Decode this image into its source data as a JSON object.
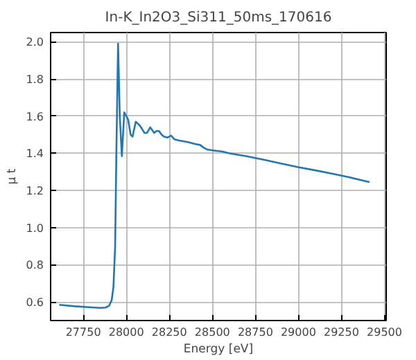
{
  "chart_data": {
    "type": "line",
    "title": "In-K_In2O3_Si311_50ms_170616",
    "xlabel": "Energy [eV]",
    "ylabel": "μ t",
    "xlim": [
      27560,
      29510
    ],
    "ylim": [
      0.5,
      2.05
    ],
    "xticks": [
      27750,
      28000,
      28250,
      28500,
      28750,
      29000,
      29250,
      29500
    ],
    "yticks": [
      0.6,
      0.8,
      {
        "value": 1,
        "label": "1.0"
      },
      1.2,
      1.4,
      1.6,
      1.8,
      {
        "value": 2,
        "label": "2.0"
      }
    ],
    "grid": true,
    "series": [
      {
        "color": "#1f77b4",
        "x": [
          27610,
          27700,
          27800,
          27850,
          27880,
          27900,
          27915,
          27925,
          27935,
          27942,
          27952,
          27962,
          27974,
          27988,
          28000,
          28011,
          28025,
          28036,
          28055,
          28078,
          28092,
          28105,
          28120,
          28139,
          28162,
          28175,
          28190,
          28205,
          28218,
          28240,
          28260,
          28280,
          28303,
          28330,
          28358,
          28400,
          28429,
          28450,
          28471,
          28510,
          28555,
          28600,
          28695,
          28800,
          28900,
          29000,
          29100,
          29199,
          29300,
          29413
        ],
        "values": [
          0.585,
          0.577,
          0.571,
          0.568,
          0.57,
          0.58,
          0.61,
          0.68,
          0.9,
          1.4,
          1.99,
          1.6,
          1.385,
          1.62,
          1.6,
          1.58,
          1.5,
          1.49,
          1.57,
          1.55,
          1.53,
          1.51,
          1.51,
          1.54,
          1.51,
          1.52,
          1.52,
          1.5,
          1.49,
          1.485,
          1.495,
          1.475,
          1.47,
          1.465,
          1.46,
          1.45,
          1.445,
          1.43,
          1.42,
          1.415,
          1.41,
          1.4,
          1.385,
          1.365,
          1.345,
          1.325,
          1.308,
          1.29,
          1.27,
          1.245
        ]
      }
    ]
  }
}
